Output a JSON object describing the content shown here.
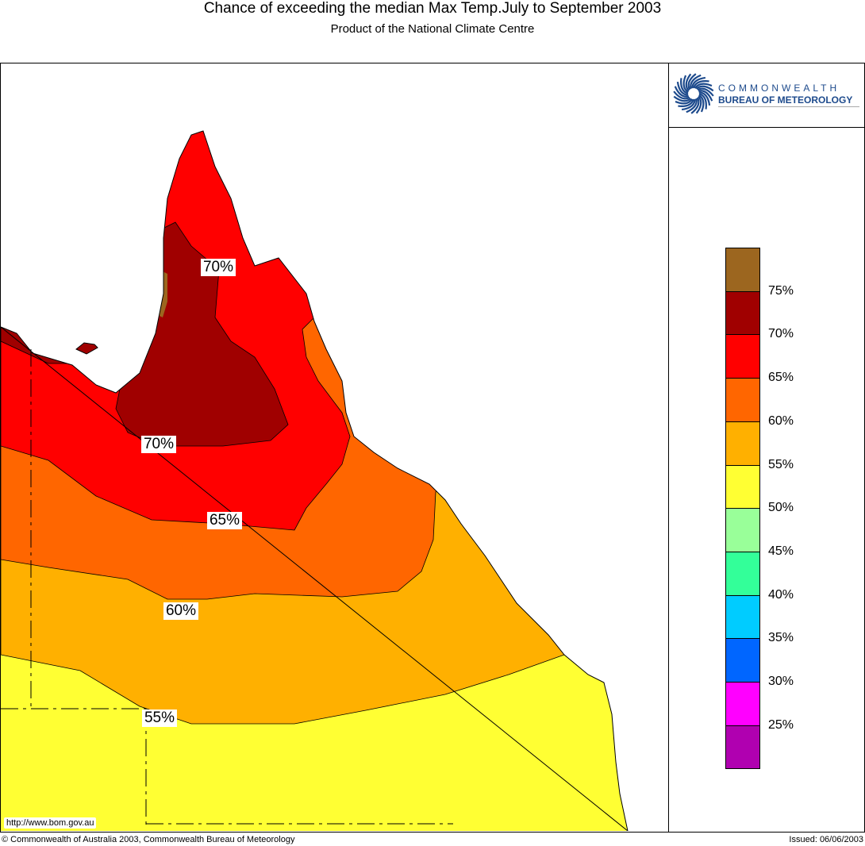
{
  "header": {
    "title": "Chance of exceeding the median Max Temp.July to September 2003",
    "subtitle": "Product of the National Climate Centre"
  },
  "logo": {
    "line1": "COMMONWEALTH",
    "line2": "BUREAU OF METEOROLOGY"
  },
  "map_labels": [
    "70%",
    "70%",
    "65%",
    "60%",
    "55%"
  ],
  "legend": {
    "colors": [
      "#9C661F",
      "#A00000",
      "#FF0000",
      "#FF6600",
      "#FFB000",
      "#FFFF33",
      "#99FF99",
      "#33FF99",
      "#00CCFF",
      "#0066FF",
      "#FF00FF",
      "#B000B0"
    ],
    "labels": [
      "75%",
      "70%",
      "65%",
      "60%",
      "55%",
      "50%",
      "45%",
      "40%",
      "35%",
      "30%",
      "25%"
    ]
  },
  "footer": {
    "url": "http://www.bom.gov.au",
    "copyright": "© Commonwealth of Australia 2003, Commonwealth Bureau of Meteorology",
    "issued": "Issued: 06/06/2003"
  }
}
